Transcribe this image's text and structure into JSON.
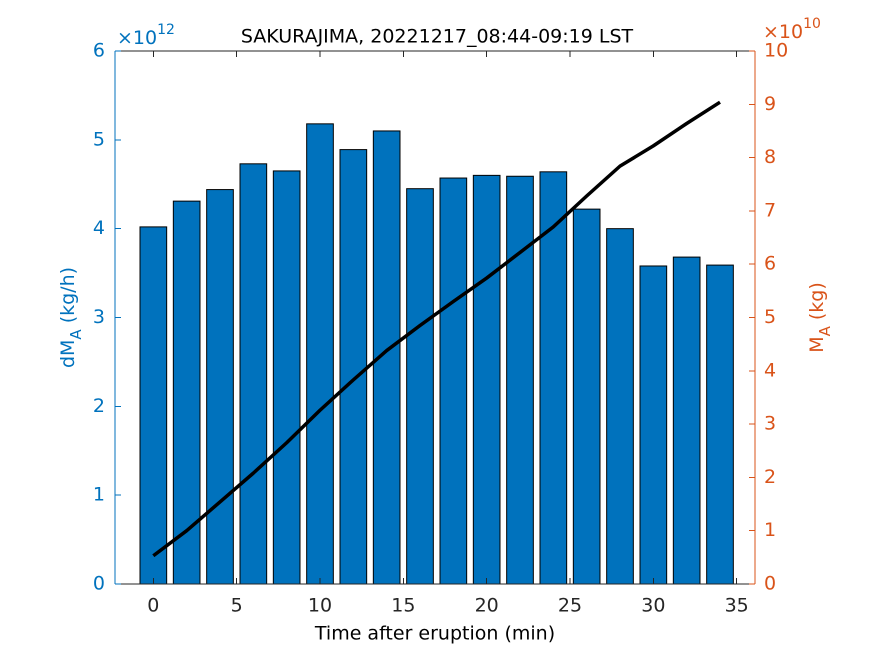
{
  "chart_data": {
    "type": "bar",
    "title": "SAKURAJIMA, 20221217_08:44-09:19 LST",
    "xlabel": "Time after eruption (min)",
    "ylabel": {
      "text": "dM",
      "sub": "A",
      "unit": "(kg/h)"
    },
    "y2label": {
      "text": "M",
      "sub": "A",
      "unit": "(kg)"
    },
    "y_exponent": {
      "base": "×10",
      "power": "12"
    },
    "y2_exponent": {
      "base": "×10",
      "power": "10"
    },
    "x": [
      0,
      2,
      4,
      6,
      8,
      10,
      12,
      14,
      16,
      18,
      20,
      22,
      24,
      26,
      28,
      30,
      32,
      34
    ],
    "series": [
      {
        "type": "bar",
        "color": "#0072BD",
        "values": [
          4.02,
          4.31,
          4.44,
          4.73,
          4.65,
          5.18,
          4.89,
          5.1,
          4.45,
          4.57,
          4.6,
          4.59,
          4.64,
          4.22,
          4.0,
          3.58,
          3.68,
          3.59
        ]
      },
      {
        "type": "line",
        "axis": "y2",
        "color": "#000000",
        "values": [
          0.53,
          1.0,
          1.54,
          2.08,
          2.65,
          3.26,
          3.83,
          4.38,
          4.85,
          5.3,
          5.74,
          6.22,
          6.7,
          7.28,
          7.84,
          8.22,
          8.64,
          9.04
        ]
      }
    ],
    "xlim": [
      -2.3,
      36.1
    ],
    "xticks": [
      0,
      5,
      10,
      15,
      20,
      25,
      30,
      35
    ],
    "ylim": [
      0,
      6
    ],
    "yticks": [
      0,
      1,
      2,
      3,
      4,
      5,
      6
    ],
    "y2lim": [
      0,
      10
    ],
    "y2ticks": [
      0,
      1,
      2,
      3,
      4,
      5,
      6,
      7,
      8,
      9,
      10
    ],
    "y_color": "#0072BD",
    "y2_color": "#D95319"
  }
}
